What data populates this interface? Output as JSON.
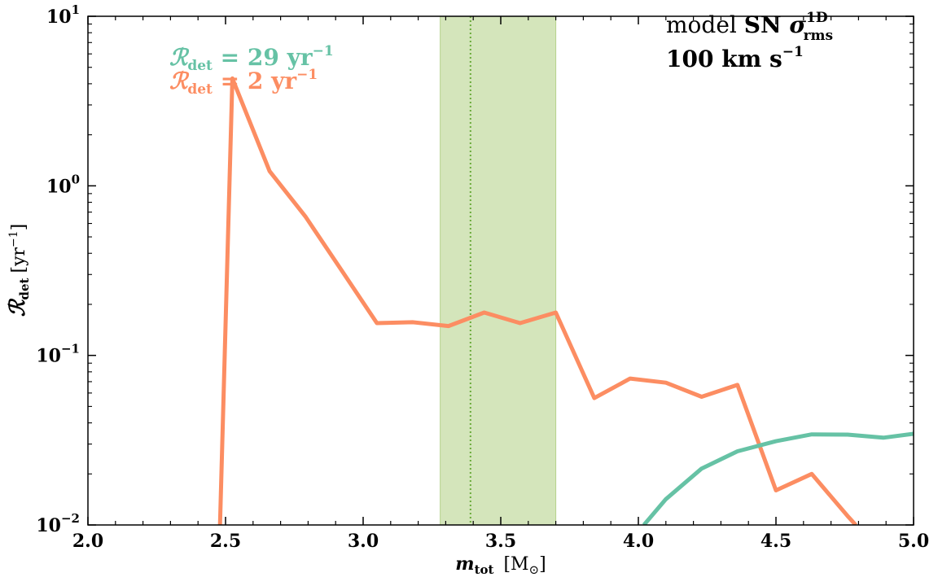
{
  "chart_data": {
    "type": "line",
    "xlabel_main": "m",
    "xlabel_sub": "tot",
    "xlabel_unit": "[M",
    "xlabel_unit_sub": "⊙",
    "xlabel_unit_close": "]",
    "ylabel_main": "ℛ",
    "ylabel_sub": "det",
    "ylabel_unit": "[yr",
    "ylabel_unit_sup": "−1",
    "ylabel_unit_close": "]",
    "xlim": [
      2.0,
      5.0
    ],
    "ylim": [
      0.01,
      10
    ],
    "yscale": "log",
    "x_ticks": [
      2.0,
      2.5,
      3.0,
      3.5,
      4.0,
      4.5,
      5.0
    ],
    "x_tick_labels": [
      "2.0",
      "2.5",
      "3.0",
      "3.5",
      "4.0",
      "4.5",
      "5.0"
    ],
    "y_ticks": [
      0.01,
      0.1,
      1,
      10
    ],
    "y_tick_labels": [
      {
        "base": "10",
        "exp": "−2"
      },
      {
        "base": "10",
        "exp": "−1"
      },
      {
        "base": "10",
        "exp": "0"
      },
      {
        "base": "10",
        "exp": "1"
      }
    ],
    "band": {
      "x0": 3.28,
      "x1": 3.7,
      "color": "#c9dfaa"
    },
    "vline": {
      "x": 3.39,
      "color": "#6aaa3a"
    },
    "series": [
      {
        "color": "#fc8d62",
        "x": [
          2.48,
          2.525,
          2.66,
          2.79,
          2.92,
          3.05,
          3.18,
          3.31,
          3.44,
          3.57,
          3.7,
          3.84,
          3.97,
          4.1,
          4.23,
          4.36,
          4.5,
          4.63,
          4.76,
          4.79
        ],
        "y": [
          0.01,
          4.3,
          1.22,
          0.66,
          0.32,
          0.155,
          0.157,
          0.149,
          0.179,
          0.155,
          0.179,
          0.056,
          0.073,
          0.069,
          0.057,
          0.067,
          0.016,
          0.02,
          0.0113,
          0.01
        ]
      },
      {
        "color": "#66c2a5",
        "x": [
          4.02,
          4.1,
          4.23,
          4.36,
          4.5,
          4.63,
          4.76,
          4.89,
          5.0
        ],
        "y": [
          0.01,
          0.0142,
          0.0215,
          0.0272,
          0.0312,
          0.0342,
          0.0341,
          0.0327,
          0.0345
        ]
      }
    ],
    "annotations": [
      {
        "prefix": "ℛ",
        "sub": "det",
        "text": " = 29 yr",
        "sup": "−1",
        "color": "#66c2a5"
      },
      {
        "prefix": "ℛ",
        "sub": "det",
        "text": " = 2 yr",
        "sup": "−1",
        "color": "#fc8d62"
      }
    ],
    "model_label": {
      "line1_plain": "model ",
      "line1_bold": "SN ",
      "line1_sigma": "σ",
      "line1_sigma_sup": "1D",
      "line1_sigma_sub": "rms",
      "line2": "100 km s",
      "line2_sup": "−1"
    }
  }
}
